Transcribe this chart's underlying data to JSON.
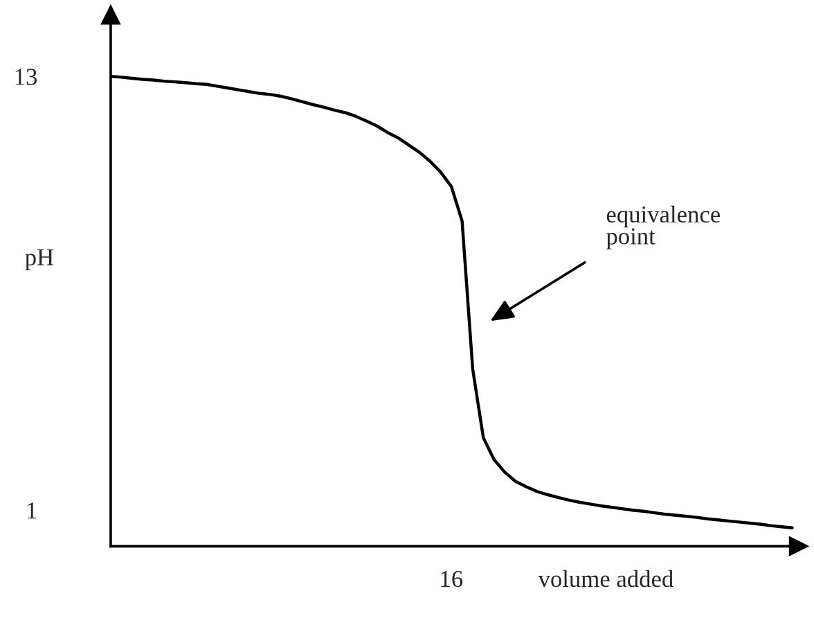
{
  "chart_data": {
    "type": "line",
    "xlabel": "volume added",
    "ylabel": "pH",
    "categories": [
      null,
      null,
      null,
      null,
      null,
      null,
      null,
      null,
      null,
      null,
      null,
      null,
      null,
      null,
      null,
      null,
      null,
      null,
      null,
      null,
      null,
      null,
      null,
      null,
      null,
      null,
      null,
      null,
      null,
      null,
      null,
      null,
      null,
      null,
      null,
      null,
      null,
      null,
      null,
      null,
      null,
      null,
      null,
      null,
      null,
      null,
      null,
      null,
      null,
      null,
      null,
      null,
      null,
      null,
      null,
      null,
      null,
      null,
      null,
      null,
      null,
      null,
      null,
      null,
      null
    ],
    "series": [
      {
        "color": "#000000",
        "values": [
          13.0,
          12.98,
          12.95,
          12.92,
          12.9,
          12.87,
          12.85,
          12.83,
          12.8,
          12.78,
          12.73,
          12.68,
          12.63,
          12.58,
          12.53,
          12.5,
          12.45,
          12.38,
          12.3,
          12.22,
          12.15,
          12.07,
          12.0,
          11.9,
          11.77,
          11.63,
          11.45,
          11.3,
          11.1,
          10.9,
          10.65,
          10.35,
          9.95,
          9.0,
          4.9,
          3.0,
          2.4,
          2.05,
          1.8,
          1.65,
          1.52,
          1.43,
          1.35,
          1.28,
          1.22,
          1.17,
          1.12,
          1.08,
          1.04,
          1.0,
          0.97,
          0.93,
          0.89,
          0.86,
          0.83,
          0.8,
          0.76,
          0.73,
          0.7,
          0.67,
          0.64,
          0.61,
          0.57,
          0.54,
          0.51
        ]
      }
    ],
    "ylim": [
      0,
      14.7
    ],
    "yticks": [
      1,
      13
    ],
    "annotations": [
      "16",
      "equivalence\npoint"
    ],
    "grid": false,
    "legend": false,
    "marker": "none",
    "line_style": "solid"
  }
}
